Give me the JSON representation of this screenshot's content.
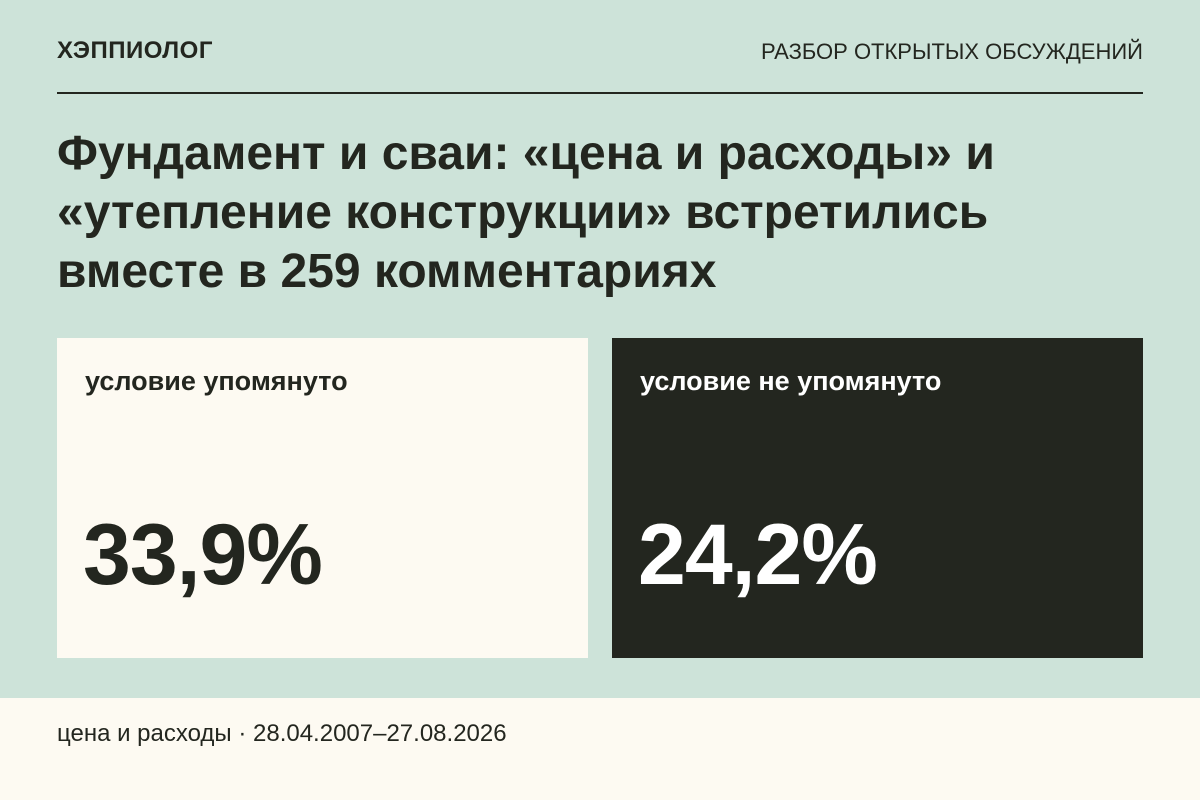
{
  "header": {
    "brand": "ХЭППИОЛОГ",
    "section": "РАЗБОР ОТКРЫТЫХ ОБСУЖДЕНИЙ"
  },
  "title": {
    "lines": [
      "Фундамент и сваи: «цена и расходы» и",
      "«утепление конструкции» встретились",
      "вместе в 259 комментариях"
    ]
  },
  "cards": [
    {
      "label": "условие упомянуто",
      "value": "33,9%"
    },
    {
      "label": "условие не упомянуто",
      "value": "24,2%"
    }
  ],
  "footer": {
    "text": "цена и расходы · 28.04.2007–27.08.2026"
  }
}
